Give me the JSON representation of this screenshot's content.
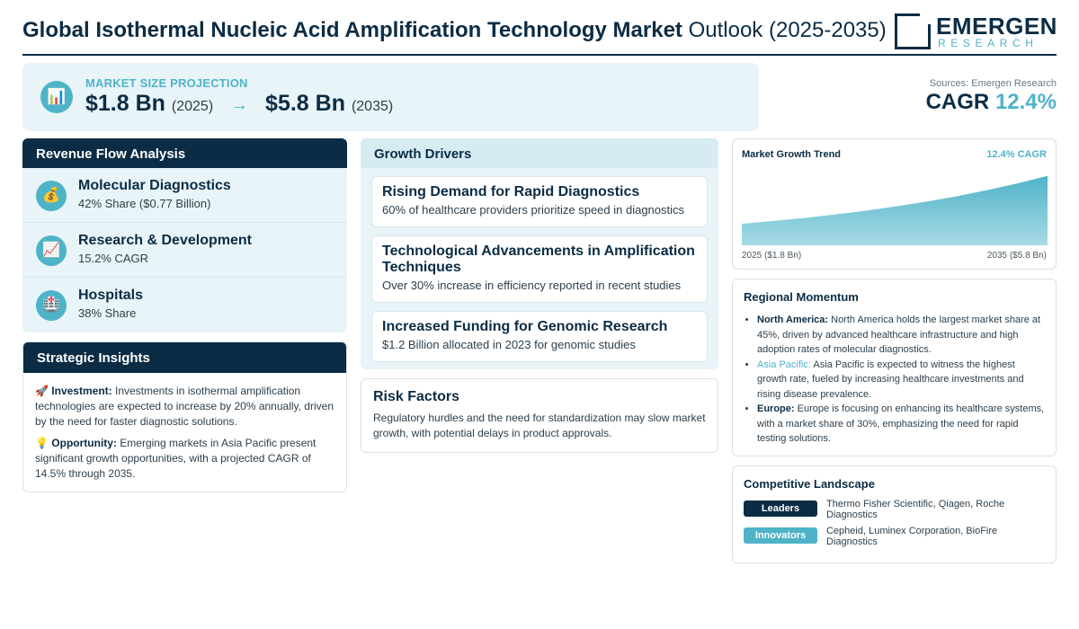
{
  "header": {
    "title_bold": "Global Isothermal Nucleic Acid Amplification Technology Market",
    "title_rest": "Outlook (2025-2035)",
    "logo_main": "EMERGEN",
    "logo_sub": "RESEARCH"
  },
  "projection": {
    "label": "MARKET SIZE PROJECTION",
    "icon": "bar-chart-icon",
    "start_value": "$1.8 Bn",
    "start_year": "(2025)",
    "arrow": "→",
    "end_value": "$5.8 Bn",
    "end_year": "(2035)"
  },
  "sources": "Sources: Emergen Research",
  "cagr": {
    "label": "CAGR",
    "value": "12.4%"
  },
  "revenue": {
    "title": "Revenue Flow Analysis",
    "items": [
      {
        "icon": "💰",
        "name": "Molecular Diagnostics",
        "sub": "42% Share ($0.77 Billion)"
      },
      {
        "icon": "📈",
        "name": "Research & Development",
        "sub": "15.2% CAGR"
      },
      {
        "icon": "🏥",
        "name": "Hospitals",
        "sub": "38% Share"
      }
    ]
  },
  "strategic": {
    "title": "Strategic Insights",
    "items": [
      {
        "icon": "🚀",
        "label": "Investment:",
        "text": "Investments in isothermal amplification technologies are expected to increase by 20% annually, driven by the need for faster diagnostic solutions."
      },
      {
        "icon": "💡",
        "label": "Opportunity:",
        "text": "Emerging markets in Asia Pacific present significant growth opportunities, with a projected CAGR of 14.5% through 2035."
      }
    ]
  },
  "drivers": {
    "title": "Growth Drivers",
    "items": [
      {
        "title": "Rising Demand for Rapid Diagnostics",
        "sub": "60% of healthcare providers prioritize speed in diagnostics"
      },
      {
        "title": "Technological Advancements in Amplification Techniques",
        "sub": "Over 30% increase in efficiency reported in recent studies"
      },
      {
        "title": "Increased Funding for Genomic Research",
        "sub": "$1.2 Billion allocated in 2023 for genomic studies"
      }
    ]
  },
  "risk": {
    "title": "Risk Factors",
    "text": "Regulatory hurdles and the need for standardization may slow market growth, with potential delays in product approvals."
  },
  "trend": {
    "title": "Market Growth Trend",
    "cagr_label": "12.4% CAGR",
    "start_label": "2025 ($1.8 Bn)",
    "end_label": "2035 ($5.8 Bn)",
    "colors": {
      "fill_top": "#4fb3c8",
      "fill_bottom": "#a8dbe6"
    }
  },
  "chart_data": {
    "type": "area",
    "x": [
      2025,
      2035
    ],
    "values": [
      1.8,
      5.8
    ],
    "ylabel": "",
    "xlabel": ""
  },
  "region": {
    "title": "Regional Momentum",
    "items": [
      {
        "name": "North America:",
        "text": "North America holds the largest market share at 45%, driven by advanced healthcare infrastructure and high adoption rates of molecular diagnostics."
      },
      {
        "name": "Asia Pacific:",
        "text": "Asia Pacific is expected to witness the highest growth rate, fueled by increasing healthcare investments and rising disease prevalence."
      },
      {
        "name": "Europe:",
        "text": "Europe is focusing on enhancing its healthcare systems, with a market share of 30%, emphasizing the need for rapid testing solutions."
      }
    ]
  },
  "competitive": {
    "title": "Competitive Landscape",
    "rows": [
      {
        "badge": "Leaders",
        "color": "#0b2c44",
        "text": "Thermo Fisher Scientific, Qiagen, Roche Diagnostics"
      },
      {
        "badge": "Innovators",
        "color": "#4fb3c8",
        "text": "Cepheid, Luminex Corporation, BioFire Diagnostics"
      }
    ]
  }
}
